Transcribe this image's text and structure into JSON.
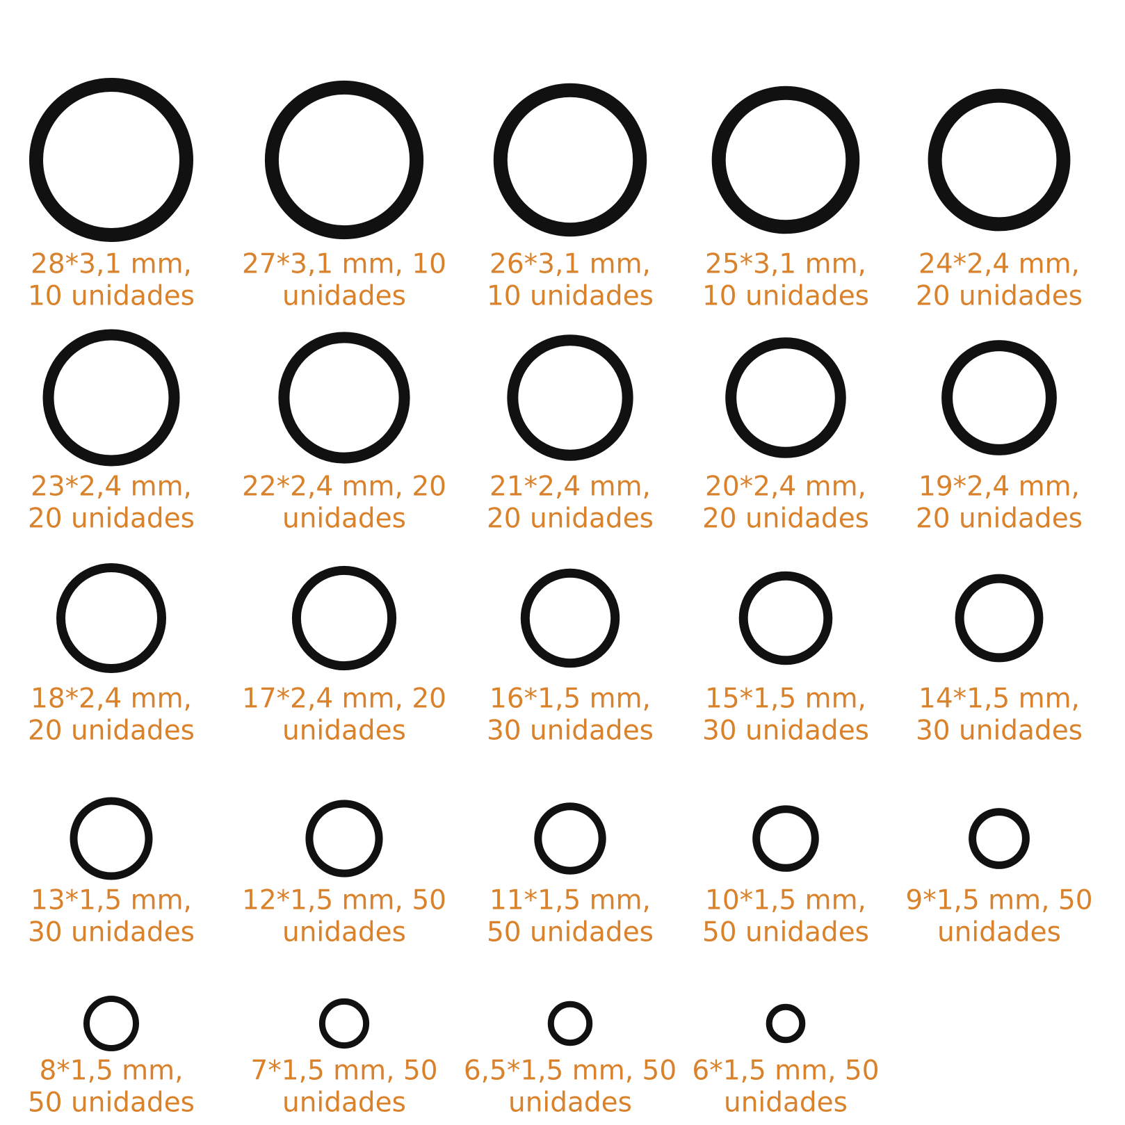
{
  "items": [
    {
      "lines": [
        "28*3,1 mm,",
        "10 unidades"
      ]
    },
    {
      "lines": [
        "27*3,1 mm, 10",
        "unidades"
      ]
    },
    {
      "lines": [
        "26*3,1 mm,",
        "10 unidades"
      ]
    },
    {
      "lines": [
        "25*3,1 mm,",
        "10 unidades"
      ]
    },
    {
      "lines": [
        "24*2,4 mm,",
        "20 unidades"
      ]
    },
    {
      "lines": [
        "23*2,4 mm,",
        "20 unidades"
      ]
    },
    {
      "lines": [
        "22*2,4 mm, 20",
        "unidades"
      ]
    },
    {
      "lines": [
        "21*2,4 mm,",
        "20 unidades"
      ]
    },
    {
      "lines": [
        "20*2,4 mm,",
        "20 unidades"
      ]
    },
    {
      "lines": [
        "19*2,4 mm,",
        "20 unidades"
      ]
    },
    {
      "lines": [
        "18*2,4 mm,",
        "20 unidades"
      ]
    },
    {
      "lines": [
        "17*2,4 mm, 20",
        "unidades"
      ]
    },
    {
      "lines": [
        "16*1,5 mm,",
        "30 unidades"
      ]
    },
    {
      "lines": [
        "15*1,5 mm,",
        "30 unidades"
      ]
    },
    {
      "lines": [
        "14*1,5 mm,",
        "30 unidades"
      ]
    },
    {
      "lines": [
        "13*1,5 mm,",
        "30 unidades"
      ]
    },
    {
      "lines": [
        "12*1,5 mm, 50",
        "unidades"
      ]
    },
    {
      "lines": [
        "11*1,5 mm,",
        "50 unidades"
      ]
    },
    {
      "lines": [
        "10*1,5 mm,",
        "50 unidades"
      ]
    },
    {
      "lines": [
        "9*1,5 mm, 50",
        "unidades"
      ]
    },
    {
      "lines": [
        "8*1,5 mm,",
        "50 unidades"
      ]
    },
    {
      "lines": [
        "7*1,5 mm, 50",
        "unidades"
      ]
    },
    {
      "lines": [
        "6,5*1,5 mm, 50",
        "unidades"
      ]
    },
    {
      "lines": [
        "6*1,5 mm, 50",
        "unidades"
      ]
    }
  ]
}
